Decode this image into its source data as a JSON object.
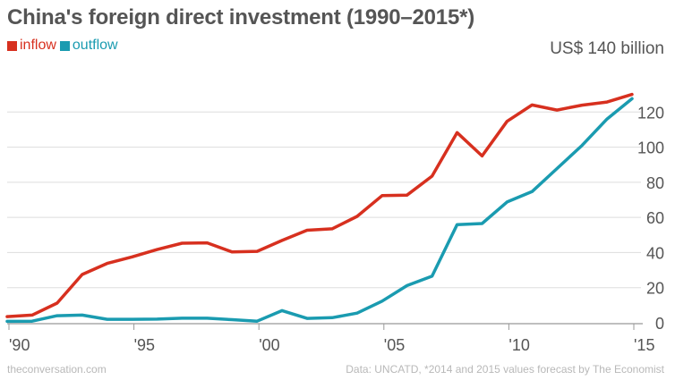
{
  "header": {
    "title": "China's foreign direct investment (1990–2015*)",
    "unit_label": "US$ 140 billion"
  },
  "legend": [
    {
      "label": "inflow",
      "color": "#d7301f"
    },
    {
      "label": "outflow",
      "color": "#1a9bb0"
    }
  ],
  "footer": {
    "source": "theconversation.com",
    "note": "Data: UNCATD, *2014 and 2015 values forecast by The Economist"
  },
  "chart_data": {
    "type": "line",
    "title": "China's foreign direct investment (1990–2015*)",
    "x": [
      1990,
      1991,
      1992,
      1993,
      1994,
      1995,
      1996,
      1997,
      1998,
      1999,
      2000,
      2001,
      2002,
      2003,
      2004,
      2005,
      2006,
      2007,
      2008,
      2009,
      2010,
      2011,
      2012,
      2013,
      2014,
      2015
    ],
    "series": [
      {
        "name": "inflow",
        "color": "#d7301f",
        "values": [
          3.5,
          4.4,
          11.2,
          27.5,
          33.8,
          37.5,
          41.7,
          45.3,
          45.5,
          40.3,
          40.7,
          46.9,
          52.7,
          53.5,
          60.6,
          72.4,
          72.7,
          83.5,
          108.3,
          95.0,
          114.7,
          124.0,
          121.1,
          123.9,
          125.7,
          130.0
        ]
      },
      {
        "name": "outflow",
        "color": "#1a9bb0",
        "values": [
          0.8,
          0.9,
          4.0,
          4.4,
          2.0,
          2.0,
          2.1,
          2.6,
          2.6,
          1.8,
          0.9,
          6.9,
          2.5,
          2.9,
          5.5,
          12.3,
          21.2,
          26.5,
          55.9,
          56.5,
          68.8,
          74.7,
          87.8,
          101.0,
          116.0,
          127.6
        ]
      }
    ],
    "xticks": [
      "'90",
      "'95",
      "'00",
      "'05",
      "'10",
      "'15"
    ],
    "xtick_values": [
      1990,
      1995,
      2000,
      2005,
      2010,
      2015
    ],
    "yticks": [
      "0",
      "20",
      "40",
      "60",
      "80",
      "100",
      "120"
    ],
    "ytick_values": [
      0,
      20,
      40,
      60,
      80,
      100,
      120
    ],
    "xlim": [
      1990,
      2015
    ],
    "ylim": [
      0,
      140
    ],
    "ylabel": "US$ 140 billion",
    "grid": true,
    "legend_position": "top-left"
  }
}
